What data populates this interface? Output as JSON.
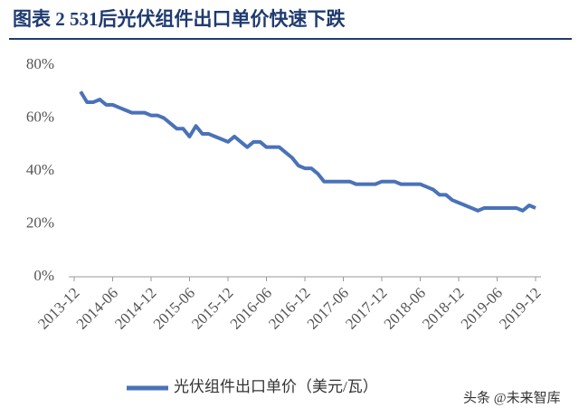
{
  "chart_data": {
    "type": "line",
    "title": "图表 2   531后光伏组件出口单价快速下跌",
    "categories": [
      "2013-12",
      null,
      null,
      null,
      null,
      null,
      "2014-06",
      null,
      null,
      null,
      null,
      null,
      "2014-12",
      null,
      null,
      null,
      null,
      null,
      "2015-06",
      null,
      null,
      null,
      null,
      null,
      "2015-12",
      null,
      null,
      null,
      null,
      null,
      "2016-06",
      null,
      null,
      null,
      null,
      null,
      "2016-12",
      null,
      null,
      null,
      null,
      null,
      "2017-06",
      null,
      null,
      null,
      null,
      null,
      "2017-12",
      null,
      null,
      null,
      null,
      null,
      "2018-06",
      null,
      null,
      null,
      null,
      null,
      "2018-12",
      null,
      null,
      null,
      null,
      null,
      "2019-06",
      null,
      null,
      null,
      null,
      null,
      "2019-12"
    ],
    "series": [
      {
        "name": "光伏组件出口单价（美元/瓦）",
        "color": "#4a72b8",
        "values": [
          null,
          70,
          66,
          66,
          67,
          65,
          65,
          64,
          63,
          62,
          62,
          62,
          61,
          61,
          60,
          58,
          56,
          56,
          53,
          57,
          54,
          54,
          53,
          52,
          51,
          53,
          51,
          49,
          51,
          51,
          49,
          49,
          49,
          47,
          45,
          42,
          41,
          41,
          39,
          36,
          36,
          36,
          36,
          36,
          35,
          35,
          35,
          35,
          36,
          36,
          36,
          35,
          35,
          35,
          35,
          34,
          33,
          31,
          31,
          29,
          28,
          27,
          26,
          25,
          26,
          26,
          26,
          26,
          26,
          26,
          25,
          27,
          26
        ]
      }
    ],
    "ylim": [
      0,
      80
    ],
    "yticks": [
      {
        "value": 0,
        "label": "0%"
      },
      {
        "value": 20,
        "label": "20%"
      },
      {
        "value": 40,
        "label": "40%"
      },
      {
        "value": 60,
        "label": "60%"
      },
      {
        "value": 80,
        "label": "80%"
      }
    ],
    "watermark": "头条 @未来智库"
  }
}
